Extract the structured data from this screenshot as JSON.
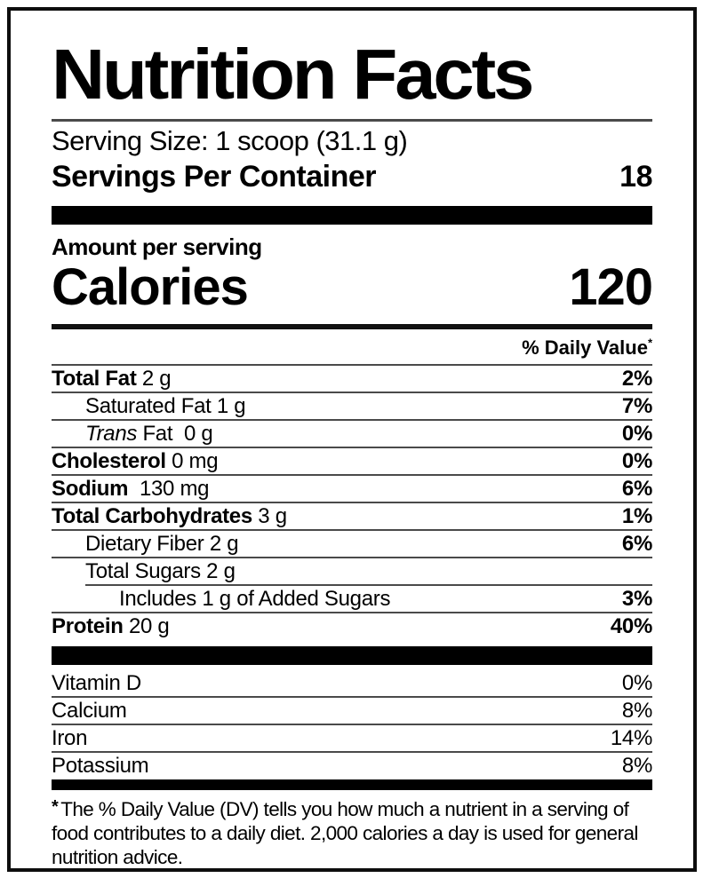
{
  "title": "Nutrition Facts",
  "serving": {
    "serving_size": "Serving Size: 1 scoop (31.1 g)",
    "servings_per_container_label": "Servings Per Container",
    "servings_per_container_value": "18"
  },
  "calories_section": {
    "amount_per_serving": "Amount per serving",
    "calories_label": "Calories",
    "calories_value": "120"
  },
  "daily_value": {
    "header": "% Daily Value",
    "marker": "*"
  },
  "nutrients": [
    {
      "strong": "Total Fat",
      "regular": " 2 g",
      "percent": "2%"
    },
    {
      "strong": "",
      "regular": "Saturated Fat 1 g",
      "percent": "7%"
    },
    {
      "italic": "Trans",
      "regular": " Fat  0 g",
      "percent": "0%"
    },
    {
      "strong": "Cholesterol",
      "regular": " 0 mg",
      "percent": "0%"
    },
    {
      "strong": "Sodium",
      "regular": "  130 mg",
      "percent": "6%"
    },
    {
      "strong": "Total Carbohydrates",
      "regular": " 3 g",
      "percent": "1%"
    },
    {
      "strong": "",
      "regular": "Dietary Fiber 2 g",
      "percent": "6%"
    },
    {
      "strong": "",
      "regular": "Total Sugars 2 g",
      "percent": ""
    },
    {
      "strong": "",
      "regular": "Includes 1 g of Added Sugars",
      "percent": "3%"
    },
    {
      "strong": "Protein",
      "regular": " 20 g",
      "percent": "40%"
    }
  ],
  "micronutrients": [
    {
      "name": "Vitamin D",
      "percent": "0%"
    },
    {
      "name": "Calcium",
      "percent": "8%"
    },
    {
      "name": "Iron",
      "percent": "14%"
    },
    {
      "name": "Potassium",
      "percent": "8%"
    }
  ],
  "footnote": {
    "marker": "*",
    "text": "The % Daily Value (DV) tells you how much a nutrient in a serving of food contributes to a daily diet. 2,000 calories a day is used for general nutrition advice."
  },
  "colors": {
    "text": "#000000",
    "rule_thin": "#4a4a4a",
    "bar": "#000000",
    "background": "#ffffff"
  }
}
